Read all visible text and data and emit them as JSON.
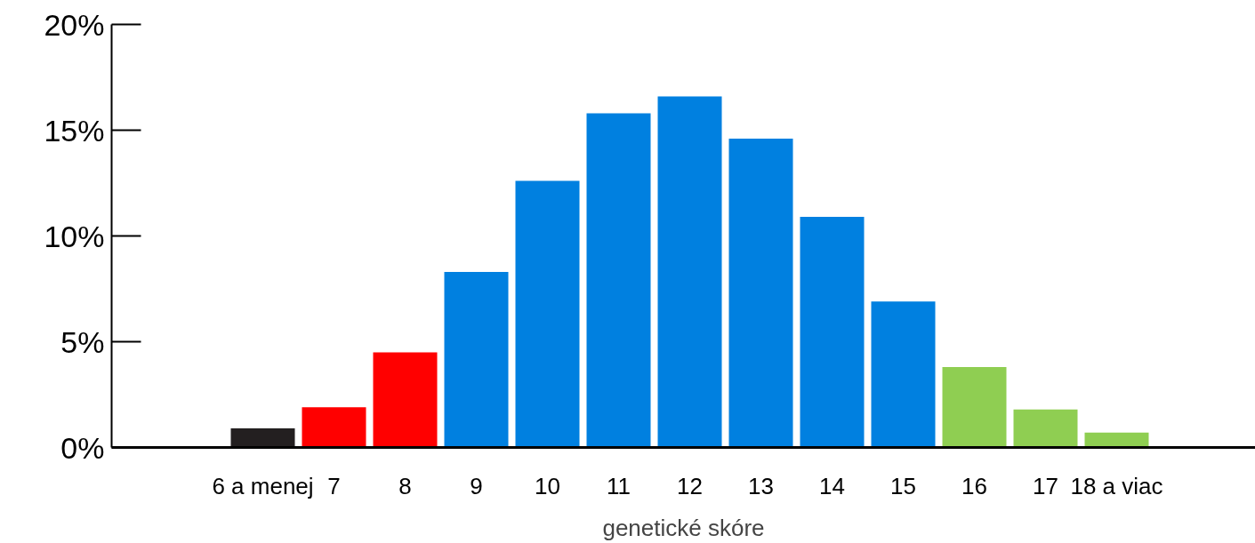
{
  "chart_data": {
    "type": "bar",
    "xlabel": "genetické skóre",
    "categories": [
      "6 a menej",
      "7",
      "8",
      "9",
      "10",
      "11",
      "12",
      "13",
      "14",
      "15",
      "16",
      "17",
      "18 a viac"
    ],
    "values": [
      0.9,
      1.9,
      4.5,
      8.3,
      12.6,
      15.8,
      16.6,
      14.6,
      10.9,
      6.9,
      3.8,
      1.8,
      0.7
    ],
    "colors": [
      "#231f20",
      "#ff0000",
      "#ff0000",
      "#0080e0",
      "#0080e0",
      "#0080e0",
      "#0080e0",
      "#0080e0",
      "#0080e0",
      "#0080e0",
      "#8fce52",
      "#8fce52",
      "#8fce52"
    ],
    "ylim": [
      0,
      20
    ],
    "yticks": [
      {
        "value": 0,
        "label": "0%"
      },
      {
        "value": 5,
        "label": "5%"
      },
      {
        "value": 10,
        "label": "10%"
      },
      {
        "value": 15,
        "label": "15%"
      },
      {
        "value": 20,
        "label": "20%"
      }
    ],
    "grid": false
  }
}
